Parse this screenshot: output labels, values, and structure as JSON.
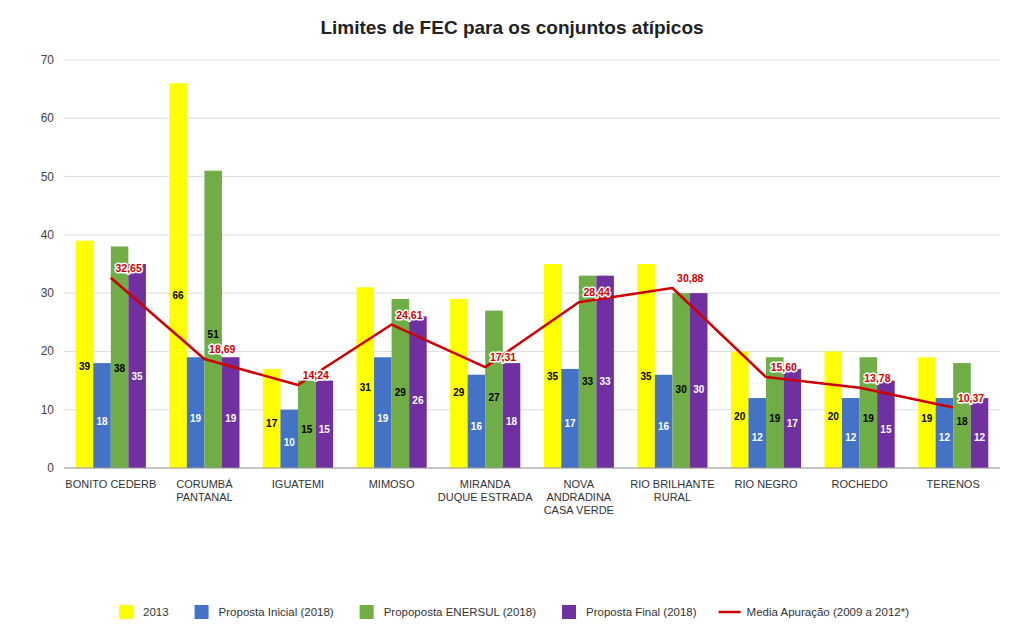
{
  "chart_data": {
    "type": "bar",
    "title": "Limites de FEC para os conjuntos atípicos",
    "categories": [
      "BONITO CEDERB",
      "CORUMBÁ\nPANTANAL",
      "IGUATEMI",
      "MIMOSO",
      "MIRANDA\nDUQUE ESTRADA",
      "NOVA\nANDRADINA\nCASA VERDE",
      "RIO BRILHANTE\nRURAL",
      "RIO NEGRO",
      "ROCHEDO",
      "TERENOS"
    ],
    "series": [
      {
        "name": "2013",
        "color": "#ffff00",
        "values": [
          39,
          66,
          17,
          31,
          29,
          35,
          35,
          20,
          20,
          19
        ]
      },
      {
        "name": "Proposta Inicial (2018)",
        "color": "#4472c4",
        "values": [
          18,
          19,
          10,
          19,
          16,
          17,
          16,
          12,
          12,
          12
        ]
      },
      {
        "name": "Propoposta ENERSUL (2018)",
        "color": "#70ad47",
        "values": [
          38,
          51,
          15,
          29,
          27,
          33,
          30,
          19,
          19,
          18
        ]
      },
      {
        "name": "Proposta Final (2018)",
        "color": "#7030a0",
        "values": [
          35,
          19,
          15,
          26,
          18,
          33,
          30,
          17,
          15,
          12
        ]
      },
      {
        "name": "Media Apuração (2009 a 2012*)",
        "type": "line",
        "color": "#cc0000",
        "values": [
          32.65,
          18.69,
          14.24,
          24.61,
          17.31,
          28.44,
          30.88,
          15.6,
          13.78,
          10.37
        ],
        "value_labels": [
          "32,65",
          "18,69",
          "14,24",
          "24,61",
          "17,31",
          "28,44",
          "30,88",
          "15,60",
          "13,78",
          "10,37"
        ]
      }
    ],
    "ylim": [
      0,
      70
    ],
    "yticks": [
      0,
      10,
      20,
      30,
      40,
      50,
      60,
      70
    ],
    "grid": true,
    "legend": "bottom",
    "data_labels": true
  }
}
